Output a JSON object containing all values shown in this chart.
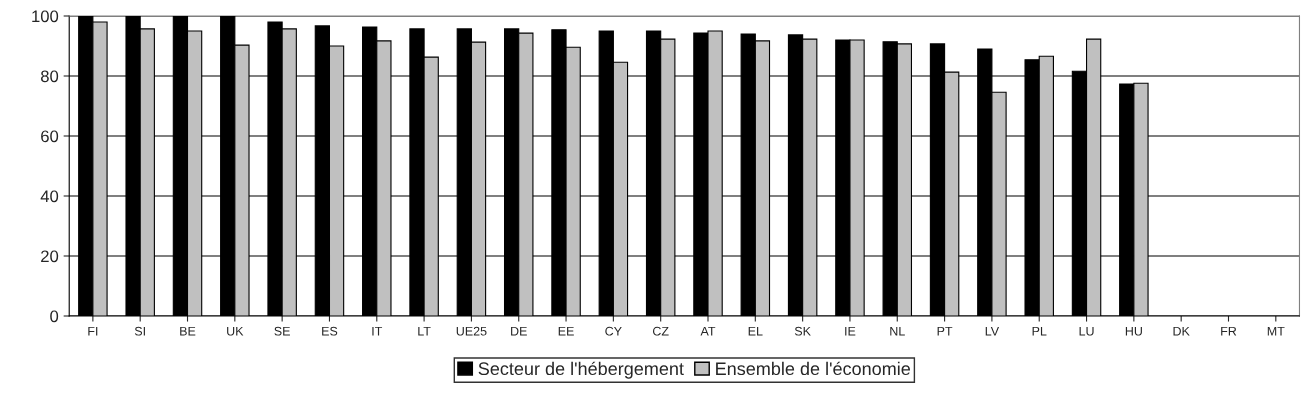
{
  "chart_data": {
    "type": "bar",
    "categories": [
      "FI",
      "SI",
      "BE",
      "UK",
      "SE",
      "ES",
      "IT",
      "LT",
      "UE25",
      "DE",
      "EE",
      "CY",
      "CZ",
      "AT",
      "EL",
      "SK",
      "IE",
      "NL",
      "PT",
      "LV",
      "PL",
      "LU",
      "HU",
      "DK",
      "FR",
      "MT"
    ],
    "series": [
      {
        "name": "Secteur de l'hébergement",
        "color": "#000000",
        "values": [
          100,
          100,
          100,
          100,
          98,
          96.7,
          96.3,
          95.7,
          95.7,
          95.7,
          95.4,
          95,
          95,
          94.3,
          94,
          93.7,
          92,
          91.4,
          90.7,
          89,
          85.4,
          81.6,
          77.3,
          null,
          null,
          null
        ]
      },
      {
        "name": "Ensemble de l'économie",
        "color": "#c0c0c0",
        "values": [
          98,
          95.7,
          95,
          90.3,
          95.7,
          90,
          91.7,
          86.3,
          91.3,
          94.3,
          89.6,
          84.6,
          92.3,
          95,
          91.7,
          92.3,
          92,
          90.7,
          81.3,
          74.6,
          86.6,
          92.3,
          77.6,
          null,
          null,
          null
        ]
      }
    ],
    "ylim": [
      0,
      100
    ],
    "yticks": [
      0,
      20,
      40,
      60,
      80,
      100
    ],
    "grid": "y",
    "legend": "bottom"
  }
}
